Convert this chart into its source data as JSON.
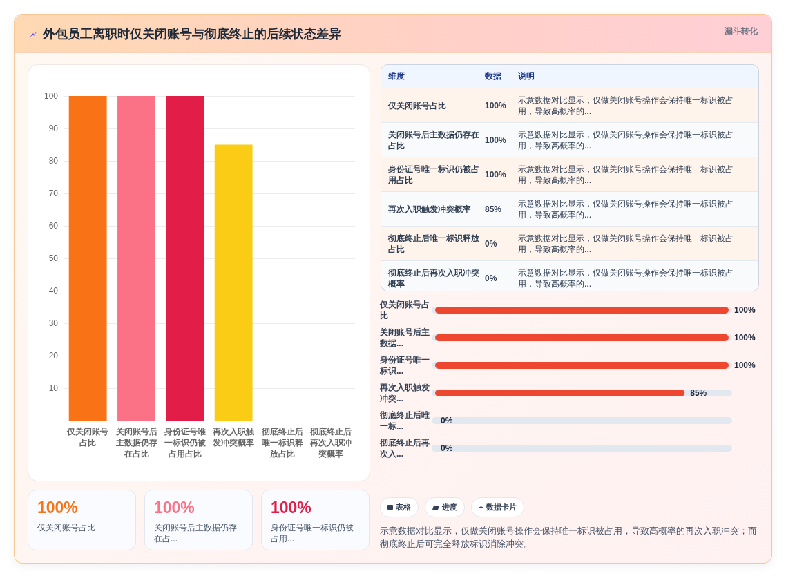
{
  "chart_data": [
    {
      "type": "bar",
      "title": "外包员工离职时仅关闭账号与彻底终止的后续状态差异",
      "categories": [
        "仅关闭账号占比",
        "关闭账号后主数据仍存在占比",
        "身份证号唯一标识仍被占用占比",
        "再次入职触发冲突概率",
        "彻底终止后唯一标识释放占比",
        "彻底终止后再次入职冲突概率"
      ],
      "values": [
        100,
        100,
        100,
        85,
        0,
        0
      ],
      "colors": [
        "#f97316",
        "#fb7185",
        "#e11d48",
        "#facc15",
        "#7c3aed",
        "#f97316"
      ],
      "ylim": [
        0,
        100
      ],
      "yticks": [
        10,
        20,
        30,
        40,
        50,
        60,
        70,
        80,
        90,
        100
      ],
      "grid": "y",
      "annotations": [
        "漏斗转化",
        "示意数据对比显示，仅做关闭账号操作会保持唯一标识被占用，导致高概率的再次入职冲突；而彻底终止后可完全释放标识消除冲突。"
      ]
    },
    {
      "type": "other",
      "categories": [
        "仅关闭账号占比",
        "关闭账号后主数据仍存在占比",
        "身份证号唯一标识仍被占用占比",
        "再次入职触发冲突概率",
        "彻底终止后唯一标识释放占比",
        "彻底终止后再次入职冲突概率"
      ],
      "value_labels": [
        "100%",
        "100%",
        "100%",
        "85%",
        "0%",
        "0%"
      ],
      "annotations": [
        "维度",
        "数据",
        "说明",
        "示意数据对比显示，仅做关闭账号操作会保持唯一标识被占用，导致高概率的...",
        "示意数据对比显示，仅做关闭账号操作会保持唯一标识被占用，导致高概率的...",
        "示意数据对比显示，仅做关闭账号操作会保持唯一标识被占用，导致高概率的...",
        "示意数据对比显示，仅做关闭账号操作会保持唯一标识被占用，导致高概率的...",
        "示意数据对比显示，仅做关闭账号操作会保持唯一标识被占用，导致高概率的...",
        "示意数据对比显示，仅做关闭账号操作会保持唯一标识被占用，导致高概率的..."
      ]
    },
    {
      "type": "bar",
      "orientation": "horizontal",
      "categories": [
        "仅关闭账号占比",
        "关闭账号后主数据...",
        "身份证号唯一标识...",
        "再次入职触发冲突...",
        "彻底终止后唯一标...",
        "彻底终止后再次入..."
      ],
      "values": [
        100,
        100,
        100,
        85,
        0,
        0
      ],
      "value_labels": [
        "100%",
        "100%",
        "100%",
        "85%",
        "0%",
        "0%"
      ],
      "color": "#ed482f",
      "xlim": [
        0,
        100
      ],
      "grid": "y"
    },
    {
      "type": "other",
      "categories": [
        "仅关闭账号占比",
        "关闭账号后主数据仍存在占...",
        "身份证号唯一标识仍被占用..."
      ],
      "value_labels": [
        "100%",
        "100%",
        "100%"
      ]
    },
    {
      "type": "other",
      "annotations": [
        "表格",
        "进度",
        "数据卡片"
      ]
    }
  ]
}
